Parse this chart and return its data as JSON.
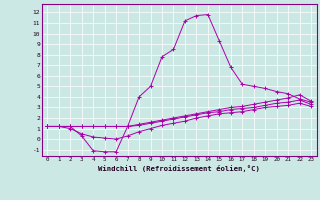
{
  "xlabel": "Windchill (Refroidissement éolien,°C)",
  "background_color": "#cce8e4",
  "line_color": "#aa00aa",
  "grid_color": "#ffffff",
  "x_ticks": [
    0,
    1,
    2,
    3,
    4,
    5,
    6,
    7,
    8,
    9,
    10,
    11,
    12,
    13,
    14,
    15,
    16,
    17,
    18,
    19,
    20,
    21,
    22,
    23
  ],
  "y_ticks": [
    -1,
    0,
    1,
    2,
    3,
    4,
    5,
    6,
    7,
    8,
    9,
    10,
    11,
    12
  ],
  "xlim": [
    -0.5,
    23.5
  ],
  "ylim": [
    -1.6,
    12.8
  ],
  "series": [
    [
      1.2,
      1.2,
      1.2,
      0.3,
      -1.1,
      -1.2,
      -1.2,
      1.2,
      4.0,
      5.0,
      7.8,
      8.5,
      11.2,
      11.7,
      11.8,
      9.3,
      6.8,
      5.2,
      5.0,
      4.8,
      4.5,
      4.3,
      3.8,
      3.5
    ],
    [
      1.2,
      1.2,
      1.2,
      1.2,
      1.2,
      1.2,
      1.2,
      1.2,
      1.4,
      1.6,
      1.8,
      2.0,
      2.2,
      2.4,
      2.6,
      2.8,
      3.0,
      3.1,
      3.3,
      3.5,
      3.7,
      3.9,
      4.2,
      3.6
    ],
    [
      1.2,
      1.2,
      1.2,
      1.2,
      1.2,
      1.2,
      1.2,
      1.2,
      1.3,
      1.5,
      1.7,
      1.9,
      2.1,
      2.3,
      2.5,
      2.6,
      2.8,
      2.9,
      3.0,
      3.2,
      3.4,
      3.5,
      3.7,
      3.3
    ],
    [
      1.2,
      1.2,
      1.0,
      0.5,
      0.2,
      0.1,
      0.0,
      0.3,
      0.7,
      1.0,
      1.3,
      1.5,
      1.7,
      2.0,
      2.2,
      2.4,
      2.5,
      2.6,
      2.8,
      3.0,
      3.1,
      3.2,
      3.4,
      3.1
    ]
  ]
}
